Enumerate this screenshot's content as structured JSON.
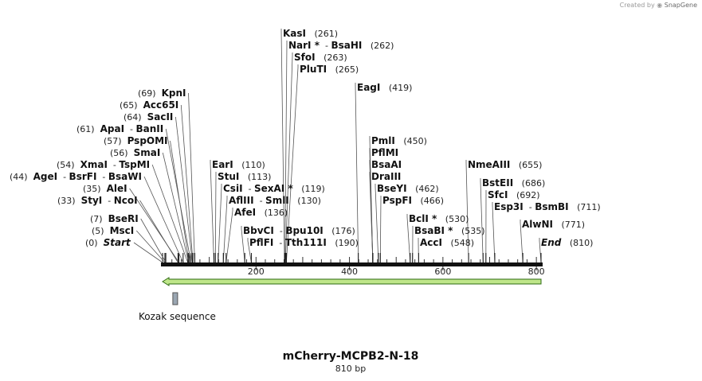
{
  "credit": {
    "prefix": "Created by",
    "brand": "SnapGene"
  },
  "title": "mCherry-MCPB2-N-18",
  "subtitle": "810 bp",
  "sequence_length": 810,
  "axis": {
    "ticks": [
      "200",
      "400",
      "600",
      "800"
    ]
  },
  "feature": {
    "name": "Kozak sequence"
  },
  "colors": {
    "arrow_fill": "#bfe68a",
    "arrow_stroke": "#2e6b12",
    "feature": "#9aa6b2",
    "line": "#555555"
  },
  "labels": [
    {
      "text": "(0)",
      "names": [
        "Start"
      ],
      "special": true
    },
    {
      "text": "(5)",
      "names": [
        "MscI"
      ]
    },
    {
      "text": "(7)",
      "names": [
        "BseRI"
      ]
    },
    {
      "text": "(33)",
      "names": [
        "StyI",
        "NcoI"
      ]
    },
    {
      "text": "(35)",
      "names": [
        "AleI"
      ]
    },
    {
      "text": "(44)",
      "names": [
        "AgeI",
        "BsrFI",
        "BsaWI"
      ]
    },
    {
      "text": "(54)",
      "names": [
        "XmaI",
        "TspMI"
      ]
    },
    {
      "text": "(56)",
      "names": [
        "SmaI"
      ]
    },
    {
      "text": "(57)",
      "names": [
        "PspOMI"
      ]
    },
    {
      "text": "(61)",
      "names": [
        "ApaI",
        "BanII"
      ]
    },
    {
      "text": "(64)",
      "names": [
        "SacII"
      ]
    },
    {
      "text": "(65)",
      "names": [
        "Acc65I"
      ]
    },
    {
      "text": "(69)",
      "names": [
        "KpnI"
      ]
    },
    {
      "text": "(110)",
      "names": [
        "EarI"
      ]
    },
    {
      "text": "(113)",
      "names": [
        "StuI"
      ]
    },
    {
      "text": "(119)",
      "names": [
        "CsiI",
        "SexAI *"
      ]
    },
    {
      "text": "(130)",
      "names": [
        "AflIII",
        "SmlI"
      ]
    },
    {
      "text": "(136)",
      "names": [
        "AfeI"
      ]
    },
    {
      "text": "(176)",
      "names": [
        "BbvCI",
        "Bpu10I"
      ]
    },
    {
      "text": "(190)",
      "names": [
        "PflFI",
        "Tth111I"
      ]
    },
    {
      "text": "(261)",
      "names": [
        "KasI"
      ]
    },
    {
      "text": "(262)",
      "names": [
        "NarI *",
        "BsaHI"
      ]
    },
    {
      "text": "(263)",
      "names": [
        "SfoI"
      ]
    },
    {
      "text": "(265)",
      "names": [
        "PluTI"
      ]
    },
    {
      "text": "(419)",
      "names": [
        "EagI"
      ]
    },
    {
      "text": "(450)",
      "names": [
        "PmlI"
      ]
    },
    {
      "text": "",
      "names": [
        "PflMI"
      ]
    },
    {
      "text": "",
      "names": [
        "BsaAI"
      ]
    },
    {
      "text": "",
      "names": [
        "DraIII"
      ]
    },
    {
      "text": "(462)",
      "names": [
        "BseYI"
      ]
    },
    {
      "text": "(466)",
      "names": [
        "PspFI"
      ]
    },
    {
      "text": "(530)",
      "names": [
        "BclI *"
      ]
    },
    {
      "text": "(535)",
      "names": [
        "BsaBI *"
      ]
    },
    {
      "text": "(548)",
      "names": [
        "AccI"
      ]
    },
    {
      "text": "(655)",
      "names": [
        "NmeAIII"
      ]
    },
    {
      "text": "(686)",
      "names": [
        "BstEII"
      ]
    },
    {
      "text": "(692)",
      "names": [
        "SfcI"
      ]
    },
    {
      "text": "(711)",
      "names": [
        "Esp3I",
        "BsmBI"
      ]
    },
    {
      "text": "(771)",
      "names": [
        "AlwNI"
      ]
    },
    {
      "text": "(810)",
      "names": [
        "End"
      ],
      "special": true
    }
  ]
}
